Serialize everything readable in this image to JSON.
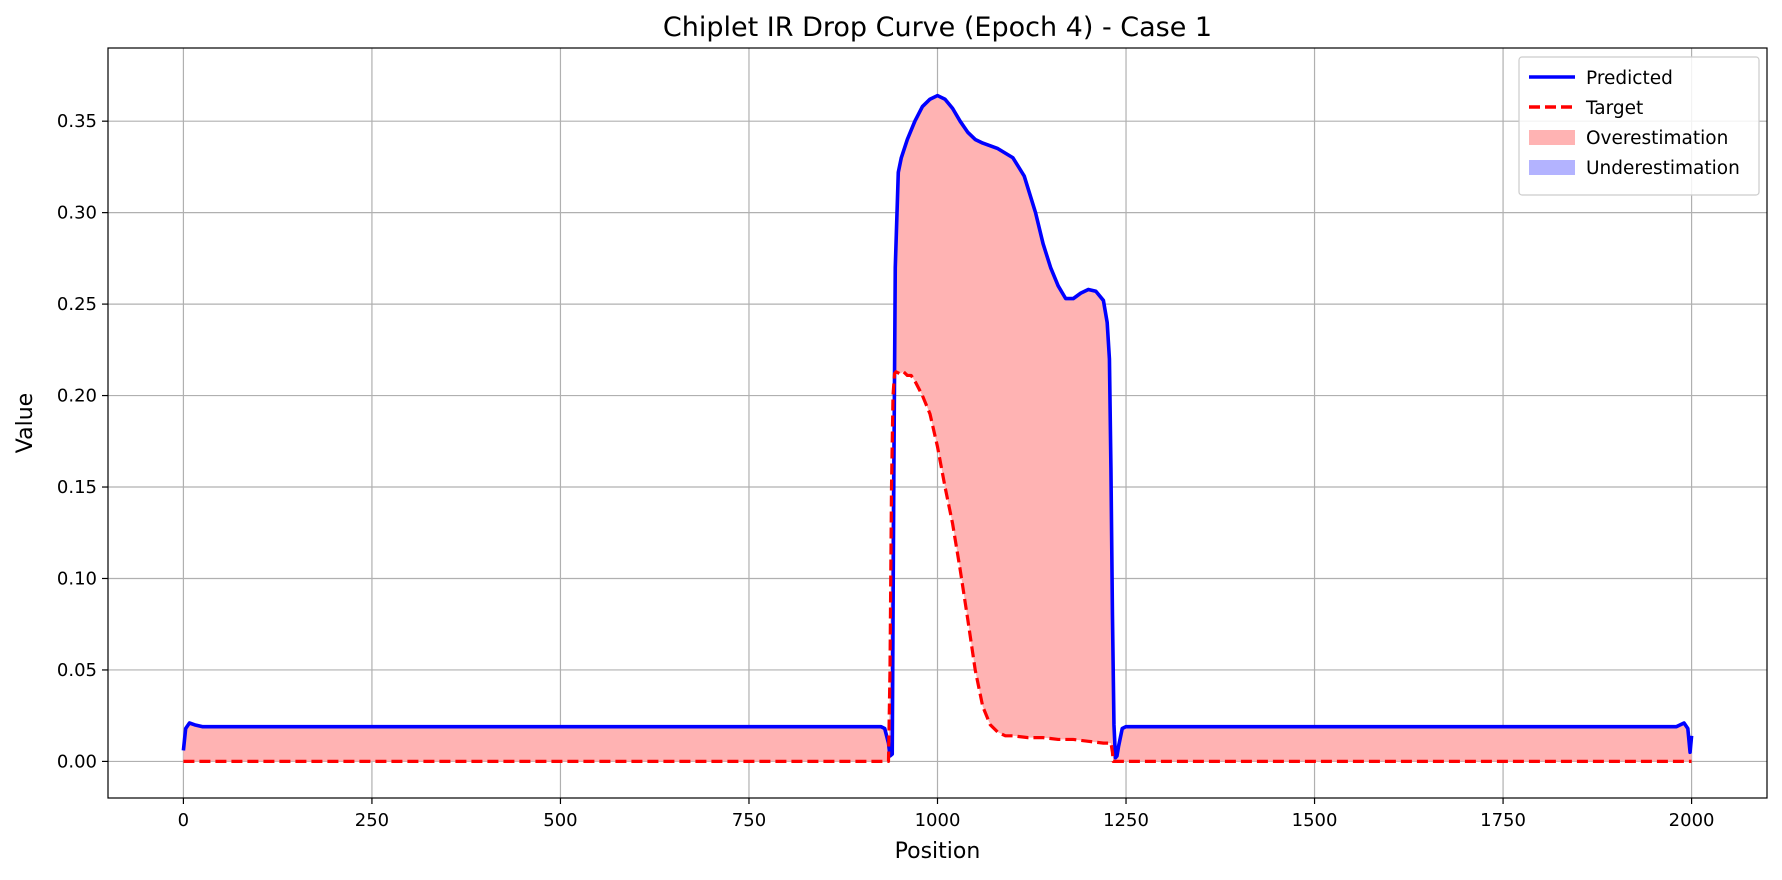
{
  "chart_data": {
    "type": "line",
    "title": "Chiplet IR Drop Curve (Epoch 4) - Case 1",
    "xlabel": "Position",
    "ylabel": "Value",
    "xlim": [
      -100,
      2100
    ],
    "ylim": [
      -0.02,
      0.39
    ],
    "xticks": [
      0,
      250,
      500,
      750,
      1000,
      1250,
      1500,
      1750,
      2000
    ],
    "yticks": [
      0.0,
      0.05,
      0.1,
      0.15,
      0.2,
      0.25,
      0.3,
      0.35
    ],
    "ytick_labels": [
      "0.00",
      "0.05",
      "0.10",
      "0.15",
      "0.20",
      "0.25",
      "0.30",
      "0.35"
    ],
    "grid": true,
    "legend_position": "top-right",
    "legend": [
      {
        "label": "Predicted",
        "kind": "line",
        "color": "#0000ff",
        "style": "solid"
      },
      {
        "label": "Target",
        "kind": "line",
        "color": "#ff0000",
        "style": "dashed"
      },
      {
        "label": "Overestimation",
        "kind": "patch",
        "color": "#ffb3b3"
      },
      {
        "label": "Underestimation",
        "kind": "patch",
        "color": "#b3b3ff"
      }
    ],
    "series": [
      {
        "name": "Predicted",
        "color": "#0000ff",
        "x": [
          0,
          3,
          8,
          15,
          25,
          100,
          500,
          900,
          925,
          930,
          935,
          937,
          940,
          942,
          944,
          948,
          952,
          960,
          970,
          980,
          990,
          1000,
          1010,
          1020,
          1030,
          1040,
          1050,
          1060,
          1080,
          1100,
          1115,
          1130,
          1140,
          1150,
          1160,
          1170,
          1180,
          1190,
          1200,
          1210,
          1220,
          1225,
          1228,
          1230,
          1232,
          1234,
          1236,
          1238,
          1240,
          1245,
          1250,
          1500,
          1980,
          1990,
          1995,
          1998,
          2000
        ],
        "y": [
          0.006,
          0.018,
          0.021,
          0.02,
          0.019,
          0.019,
          0.019,
          0.019,
          0.019,
          0.018,
          0.01,
          0.003,
          0.004,
          0.15,
          0.27,
          0.322,
          0.33,
          0.34,
          0.35,
          0.358,
          0.362,
          0.364,
          0.362,
          0.357,
          0.35,
          0.344,
          0.34,
          0.338,
          0.335,
          0.33,
          0.32,
          0.3,
          0.283,
          0.27,
          0.26,
          0.253,
          0.253,
          0.256,
          0.258,
          0.257,
          0.252,
          0.24,
          0.22,
          0.16,
          0.08,
          0.02,
          0.002,
          0.003,
          0.008,
          0.018,
          0.019,
          0.019,
          0.019,
          0.021,
          0.018,
          0.005,
          0.014
        ]
      },
      {
        "name": "Target",
        "color": "#ff0000",
        "x": [
          0,
          935,
          937,
          939,
          941,
          943,
          945,
          950,
          955,
          960,
          965,
          970,
          980,
          990,
          1000,
          1010,
          1020,
          1030,
          1040,
          1050,
          1060,
          1070,
          1080,
          1090,
          1100,
          1120,
          1140,
          1160,
          1180,
          1200,
          1220,
          1230,
          1232,
          1233,
          2000
        ],
        "y": [
          0.0,
          0.0,
          0.05,
          0.15,
          0.2,
          0.212,
          0.213,
          0.212,
          0.213,
          0.211,
          0.211,
          0.208,
          0.2,
          0.19,
          0.172,
          0.15,
          0.13,
          0.105,
          0.078,
          0.05,
          0.03,
          0.02,
          0.016,
          0.014,
          0.014,
          0.013,
          0.013,
          0.012,
          0.012,
          0.011,
          0.01,
          0.01,
          0.005,
          0.0,
          0.0
        ]
      }
    ]
  }
}
